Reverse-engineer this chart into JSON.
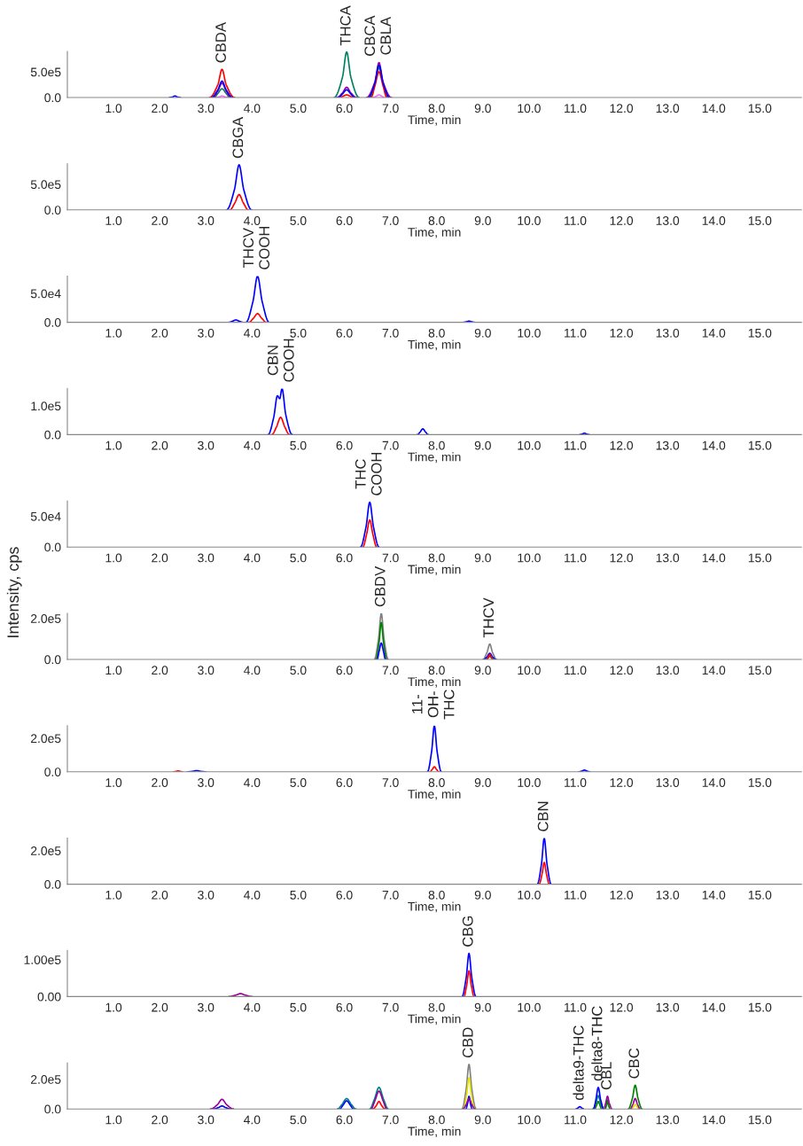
{
  "chart_data": [
    {
      "type": "line",
      "xlabel": "Time, min",
      "xlim": [
        0,
        15.9
      ],
      "xticks": [
        {
          "value": 1,
          "label": "1.0"
        },
        {
          "value": 2,
          "label": "2.0"
        },
        {
          "value": 3,
          "label": "3.0"
        },
        {
          "value": 4,
          "label": "4.0"
        },
        {
          "value": 5,
          "label": "5.0"
        },
        {
          "value": 6,
          "label": "6.0"
        },
        {
          "value": 7,
          "label": "7.0"
        },
        {
          "value": 8,
          "label": "8.0"
        },
        {
          "value": 9,
          "label": "9.0"
        },
        {
          "value": 10,
          "label": "10.0"
        },
        {
          "value": 11,
          "label": "11.0"
        },
        {
          "value": 12,
          "label": "12.0"
        },
        {
          "value": 13,
          "label": "13.0"
        },
        {
          "value": 14,
          "label": "14.0"
        },
        {
          "value": 15,
          "label": "15.0"
        }
      ],
      "ylim": [
        0,
        900000
      ],
      "yticks": [
        {
          "value": 0,
          "label": "0.0"
        },
        {
          "value": 500000,
          "label": "5.0e5"
        }
      ],
      "grid": false,
      "legend": false,
      "marker": "none",
      "line_style": "solid",
      "series": [
        {
          "color": "#008060",
          "x": [
            3.18,
            3.26,
            3.35,
            3.44,
            3.52,
            4.9,
            5.78,
            5.96,
            6.05,
            6.14,
            6.32,
            6.4,
            6.55,
            6.66,
            6.75,
            6.84,
            6.95
          ],
          "values": [
            0,
            80000,
            170000,
            80000,
            0,
            null,
            0,
            400000,
            890000,
            400000,
            0,
            null,
            0,
            260000,
            580000,
            260000,
            0
          ]
        },
        {
          "color": "#990099",
          "x": [
            3.15,
            3.26,
            3.35,
            3.44,
            3.55,
            4.9,
            5.83,
            5.96,
            6.05,
            6.14,
            6.27,
            6.4,
            6.48,
            6.66,
            6.75,
            6.84,
            7.02
          ],
          "values": [
            0,
            130000,
            280000,
            130000,
            0,
            null,
            0,
            90000,
            200000,
            90000,
            0,
            null,
            0,
            300000,
            680000,
            300000,
            0
          ]
        },
        {
          "color": "#ff0000",
          "x": [
            3.08,
            3.26,
            3.35,
            3.44,
            3.62,
            4.9,
            5.92,
            5.96,
            6.05,
            6.14,
            6.18,
            6.4,
            6.58,
            6.66,
            6.75,
            6.84,
            6.92
          ],
          "values": [
            0,
            250000,
            550000,
            250000,
            0,
            null,
            0,
            20000,
            50000,
            20000,
            0,
            null,
            0,
            220000,
            500000,
            220000,
            0
          ]
        },
        {
          "color": "#0000ff",
          "x": [
            2.21,
            2.28,
            2.33,
            2.38,
            2.45,
            2.8,
            3.12,
            3.26,
            3.35,
            3.44,
            3.58,
            4.9,
            5.87,
            5.96,
            6.05,
            6.14,
            6.23,
            6.4,
            6.52,
            6.66,
            6.75,
            6.84,
            6.98
          ],
          "values": [
            0,
            10000,
            30000,
            10000,
            0,
            null,
            0,
            150000,
            320000,
            150000,
            0,
            null,
            0,
            70000,
            150000,
            70000,
            0,
            null,
            0,
            280000,
            630000,
            280000,
            0
          ]
        },
        {
          "color": "#ff66ff",
          "x": [
            3.23,
            3.28,
            3.35,
            3.42,
            3.47,
            5.0,
            6.63,
            6.68,
            6.75,
            6.82,
            6.87
          ],
          "values": [
            0,
            10000,
            30000,
            10000,
            0,
            null,
            0,
            20000,
            50000,
            20000,
            0
          ]
        }
      ],
      "annotations": [
        {
          "text": "CBDA",
          "x": 3.35,
          "y": 550000
        },
        {
          "text": "THCA",
          "x": 6.05,
          "y": 890000
        },
        {
          "text": "CBCA\nCBLA",
          "x": 6.75,
          "y": 680000
        }
      ]
    },
    {
      "type": "line",
      "xlabel": "Time, min",
      "xlim": [
        0,
        15.9
      ],
      "xticks": [
        {
          "value": 1,
          "label": "1.0"
        },
        {
          "value": 2,
          "label": "2.0"
        },
        {
          "value": 3,
          "label": "3.0"
        },
        {
          "value": 4,
          "label": "4.0"
        },
        {
          "value": 5,
          "label": "5.0"
        },
        {
          "value": 6,
          "label": "6.0"
        },
        {
          "value": 7,
          "label": "7.0"
        },
        {
          "value": 8,
          "label": "8.0"
        },
        {
          "value": 9,
          "label": "9.0"
        },
        {
          "value": 10,
          "label": "10.0"
        },
        {
          "value": 11,
          "label": "11.0"
        },
        {
          "value": 12,
          "label": "12.0"
        },
        {
          "value": 13,
          "label": "13.0"
        },
        {
          "value": 14,
          "label": "14.0"
        },
        {
          "value": 15,
          "label": "15.0"
        }
      ],
      "ylim": [
        0,
        900000
      ],
      "yticks": [
        {
          "value": 0,
          "label": "0.0"
        },
        {
          "value": 500000,
          "label": "5.0e5"
        }
      ],
      "grid": false,
      "legend": false,
      "marker": "none",
      "line_style": "solid",
      "series": [
        {
          "color": "#0000ff",
          "x": [
            3.45,
            3.62,
            3.72,
            3.82,
            3.99
          ],
          "values": [
            0,
            400000,
            880000,
            400000,
            0
          ]
        },
        {
          "color": "#ff0000",
          "x": [
            3.52,
            3.63,
            3.72,
            3.81,
            3.92
          ],
          "values": [
            0,
            140000,
            300000,
            140000,
            0
          ]
        }
      ],
      "annotations": [
        {
          "text": "CBGA",
          "x": 3.72,
          "y": 880000
        }
      ]
    },
    {
      "type": "line",
      "xlabel": "Time, min",
      "xlim": [
        0,
        15.9
      ],
      "xticks": [
        {
          "value": 1,
          "label": "1.0"
        },
        {
          "value": 2,
          "label": "2.0"
        },
        {
          "value": 3,
          "label": "3.0"
        },
        {
          "value": 4,
          "label": "4.0"
        },
        {
          "value": 5,
          "label": "5.0"
        },
        {
          "value": 6,
          "label": "6.0"
        },
        {
          "value": 7,
          "label": "7.0"
        },
        {
          "value": 8,
          "label": "8.0"
        },
        {
          "value": 9,
          "label": "9.0"
        },
        {
          "value": 10,
          "label": "10.0"
        },
        {
          "value": 11,
          "label": "11.0"
        },
        {
          "value": 12,
          "label": "12.0"
        },
        {
          "value": 13,
          "label": "13.0"
        },
        {
          "value": 14,
          "label": "14.0"
        },
        {
          "value": 15,
          "label": "15.0"
        }
      ],
      "ylim": [
        0,
        80000
      ],
      "yticks": [
        {
          "value": 0,
          "label": "0.0"
        },
        {
          "value": 50000,
          "label": "5.0e4"
        }
      ],
      "grid": false,
      "legend": false,
      "marker": "none",
      "line_style": "solid",
      "series": [
        {
          "color": "#0000ff",
          "x": [
            3.5,
            3.58,
            3.65,
            3.72,
            3.8,
            3.85,
            3.87,
            4.02,
            4.12,
            4.22,
            4.37,
            6.0,
            8.58,
            8.65,
            8.7,
            8.75,
            8.82
          ],
          "values": [
            0,
            2000,
            4000,
            2000,
            0,
            null,
            0,
            36000,
            80000,
            36000,
            0,
            null,
            0,
            1000,
            2000,
            1000,
            0
          ]
        },
        {
          "color": "#ff0000",
          "x": [
            3.93,
            4.03,
            4.12,
            4.21,
            4.31
          ],
          "values": [
            0,
            7000,
            15000,
            7000,
            0
          ]
        }
      ],
      "annotations": [
        {
          "text": "THCV\nCOOH",
          "x": 4.12,
          "y": 80000
        }
      ]
    },
    {
      "type": "line",
      "xlabel": "Time, min",
      "xlim": [
        0,
        15.9
      ],
      "xticks": [
        {
          "value": 1,
          "label": "1.0"
        },
        {
          "value": 2,
          "label": "2.0"
        },
        {
          "value": 3,
          "label": "3.0"
        },
        {
          "value": 4,
          "label": "4.0"
        },
        {
          "value": 5,
          "label": "5.0"
        },
        {
          "value": 6,
          "label": "6.0"
        },
        {
          "value": 7,
          "label": "7.0"
        },
        {
          "value": 8,
          "label": "8.0"
        },
        {
          "value": 9,
          "label": "9.0"
        },
        {
          "value": 10,
          "label": "10.0"
        },
        {
          "value": 11,
          "label": "11.0"
        },
        {
          "value": 12,
          "label": "12.0"
        },
        {
          "value": 13,
          "label": "13.0"
        },
        {
          "value": 14,
          "label": "14.0"
        },
        {
          "value": 15,
          "label": "15.0"
        }
      ],
      "ylim": [
        0,
        160000
      ],
      "yticks": [
        {
          "value": 0,
          "label": "0.0"
        },
        {
          "value": 100000,
          "label": "1.0e5"
        }
      ],
      "grid": false,
      "legend": false,
      "marker": "none",
      "line_style": "solid",
      "series": [
        {
          "color": "#0000ff",
          "x": [
            4.35,
            4.47,
            4.55,
            4.6,
            4.65,
            4.73,
            4.87,
            6.0,
            7.58,
            7.64,
            7.7,
            7.76,
            7.82,
            9.0,
            11.1,
            11.15,
            11.2,
            11.25,
            11.3
          ],
          "values": [
            0,
            60000,
            135000,
            125000,
            160000,
            70000,
            0,
            null,
            0,
            9000,
            20000,
            9000,
            0,
            null,
            0,
            2000,
            5000,
            2000,
            0
          ]
        },
        {
          "color": "#ff0000",
          "x": [
            4.43,
            4.53,
            4.62,
            4.71,
            4.81
          ],
          "values": [
            0,
            27000,
            60000,
            27000,
            0
          ]
        }
      ],
      "annotations": [
        {
          "text": "CBN\nCOOH",
          "x": 4.65,
          "y": 160000
        }
      ]
    },
    {
      "type": "line",
      "xlabel": "Time, min",
      "xlim": [
        0,
        15.9
      ],
      "xticks": [
        {
          "value": 1,
          "label": "1.0"
        },
        {
          "value": 2,
          "label": "2.0"
        },
        {
          "value": 3,
          "label": "3.0"
        },
        {
          "value": 4,
          "label": "4.0"
        },
        {
          "value": 5,
          "label": "5.0"
        },
        {
          "value": 6,
          "label": "6.0"
        },
        {
          "value": 7,
          "label": "7.0"
        },
        {
          "value": 8,
          "label": "8.0"
        },
        {
          "value": 9,
          "label": "9.0"
        },
        {
          "value": 10,
          "label": "10.0"
        },
        {
          "value": 11,
          "label": "11.0"
        },
        {
          "value": 12,
          "label": "12.0"
        },
        {
          "value": 13,
          "label": "13.0"
        },
        {
          "value": 14,
          "label": "14.0"
        },
        {
          "value": 15,
          "label": "15.0"
        }
      ],
      "ylim": [
        0,
        75000
      ],
      "yticks": [
        {
          "value": 0,
          "label": "0.0"
        },
        {
          "value": 50000,
          "label": "5.0e4"
        }
      ],
      "grid": false,
      "legend": false,
      "marker": "none",
      "line_style": "solid",
      "series": [
        {
          "color": "#0000ff",
          "x": [
            6.35,
            6.47,
            6.55,
            6.63,
            6.75
          ],
          "values": [
            0,
            33000,
            73000,
            33000,
            0
          ]
        },
        {
          "color": "#ff0000",
          "x": [
            6.4,
            6.48,
            6.55,
            6.62,
            6.7
          ],
          "values": [
            0,
            20000,
            44000,
            20000,
            0
          ]
        }
      ],
      "annotations": [
        {
          "text": "THC\nCOOH",
          "x": 6.55,
          "y": 73000
        }
      ]
    },
    {
      "type": "line",
      "xlabel": "Time, min",
      "ylabel": "Intensity, cps",
      "xlim": [
        0,
        15.9
      ],
      "xticks": [
        {
          "value": 1,
          "label": "1.0"
        },
        {
          "value": 2,
          "label": "2.0"
        },
        {
          "value": 3,
          "label": "3.0"
        },
        {
          "value": 4,
          "label": "4.0"
        },
        {
          "value": 5,
          "label": "5.0"
        },
        {
          "value": 6,
          "label": "6.0"
        },
        {
          "value": 7,
          "label": "7.0"
        },
        {
          "value": 8,
          "label": "8.0"
        },
        {
          "value": 9,
          "label": "9.0"
        },
        {
          "value": 10,
          "label": "10.0"
        },
        {
          "value": 11,
          "label": "11.0"
        },
        {
          "value": 12,
          "label": "12.0"
        },
        {
          "value": 13,
          "label": "13.0"
        },
        {
          "value": 14,
          "label": "14.0"
        },
        {
          "value": 15,
          "label": "15.0"
        }
      ],
      "ylim": [
        0,
        225000
      ],
      "yticks": [
        {
          "value": 0,
          "label": "0.0"
        },
        {
          "value": 200000,
          "label": "2.0e5"
        }
      ],
      "grid": false,
      "legend": false,
      "marker": "none",
      "line_style": "solid",
      "series": [
        {
          "color": "#808080",
          "x": [
            6.65,
            6.74,
            6.8,
            6.86,
            6.95,
            8.0,
            9.0,
            9.09,
            9.15,
            9.21,
            9.3
          ],
          "values": [
            0,
            100000,
            225000,
            100000,
            0,
            null,
            0,
            34000,
            75000,
            34000,
            0
          ]
        },
        {
          "color": "#008000",
          "x": [
            6.68,
            6.75,
            6.8,
            6.85,
            6.92,
            8.0,
            9.07,
            9.11,
            9.15,
            9.19,
            9.23
          ],
          "values": [
            0,
            80000,
            180000,
            80000,
            0,
            null,
            0,
            7000,
            15000,
            7000,
            0
          ]
        },
        {
          "color": "#0000ff",
          "x": [
            6.71,
            6.75,
            6.8,
            6.85,
            6.89,
            8.0,
            9.02,
            9.09,
            9.15,
            9.21,
            9.28
          ],
          "values": [
            0,
            36000,
            80000,
            36000,
            0,
            null,
            0,
            13000,
            30000,
            13000,
            0
          ]
        },
        {
          "color": "#ff0000",
          "x": [
            9.08,
            9.12,
            9.15,
            9.18,
            9.22
          ],
          "values": [
            0,
            12000,
            25000,
            12000,
            0
          ]
        }
      ],
      "annotations": [
        {
          "text": "CBDV",
          "x": 6.8,
          "y": 225000
        },
        {
          "text": "THCV",
          "x": 9.15,
          "y": 75000
        }
      ]
    },
    {
      "type": "line",
      "xlabel": "Time, min",
      "xlim": [
        0,
        15.9
      ],
      "xticks": [
        {
          "value": 1,
          "label": "1.0"
        },
        {
          "value": 2,
          "label": "2.0"
        },
        {
          "value": 3,
          "label": "3.0"
        },
        {
          "value": 4,
          "label": "4.0"
        },
        {
          "value": 5,
          "label": "5.0"
        },
        {
          "value": 6,
          "label": "6.0"
        },
        {
          "value": 7,
          "label": "7.0"
        },
        {
          "value": 8,
          "label": "8.0"
        },
        {
          "value": 9,
          "label": "9.0"
        },
        {
          "value": 10,
          "label": "10.0"
        },
        {
          "value": 11,
          "label": "11.0"
        },
        {
          "value": 12,
          "label": "12.0"
        },
        {
          "value": 13,
          "label": "13.0"
        },
        {
          "value": 14,
          "label": "14.0"
        },
        {
          "value": 15,
          "label": "15.0"
        }
      ],
      "ylim": [
        0,
        275000
      ],
      "yticks": [
        {
          "value": 0,
          "label": "0.0"
        },
        {
          "value": 200000,
          "label": "2.0e5"
        }
      ],
      "grid": false,
      "legend": false,
      "marker": "none",
      "line_style": "solid",
      "series": [
        {
          "color": "#0000ff",
          "x": [
            2.6,
            2.72,
            2.8,
            2.88,
            3.0,
            5.0,
            7.8,
            7.89,
            7.95,
            8.01,
            8.1,
            9.5,
            11.08,
            11.14,
            11.2,
            11.26,
            11.32
          ],
          "values": [
            0,
            3000,
            7000,
            3000,
            0,
            null,
            0,
            120000,
            275000,
            120000,
            0,
            null,
            0,
            4000,
            10000,
            4000,
            0
          ]
        },
        {
          "color": "#ff0000",
          "x": [
            2.3,
            2.35,
            2.4,
            2.45,
            2.5,
            5.0,
            7.85,
            7.9,
            7.95,
            8.0,
            8.05
          ],
          "values": [
            0,
            2000,
            5000,
            2000,
            0,
            null,
            0,
            13000,
            30000,
            13000,
            0
          ]
        }
      ],
      "annotations": [
        {
          "text": "11-\nOH-\nTHC",
          "x": 7.95,
          "y": 275000
        }
      ]
    },
    {
      "type": "line",
      "xlabel": "Time, min",
      "xlim": [
        0,
        15.9
      ],
      "xticks": [
        {
          "value": 1,
          "label": "1.0"
        },
        {
          "value": 2,
          "label": "2.0"
        },
        {
          "value": 3,
          "label": "3.0"
        },
        {
          "value": 4,
          "label": "4.0"
        },
        {
          "value": 5,
          "label": "5.0"
        },
        {
          "value": 6,
          "label": "6.0"
        },
        {
          "value": 7,
          "label": "7.0"
        },
        {
          "value": 8,
          "label": "8.0"
        },
        {
          "value": 9,
          "label": "9.0"
        },
        {
          "value": 10,
          "label": "10.0"
        },
        {
          "value": 11,
          "label": "11.0"
        },
        {
          "value": 12,
          "label": "12.0"
        },
        {
          "value": 13,
          "label": "13.0"
        },
        {
          "value": 14,
          "label": "14.0"
        },
        {
          "value": 15,
          "label": "15.0"
        }
      ],
      "ylim": [
        0,
        275000
      ],
      "yticks": [
        {
          "value": 0,
          "label": "0.0"
        },
        {
          "value": 200000,
          "label": "2.0e5"
        }
      ],
      "grid": false,
      "legend": false,
      "marker": "none",
      "line_style": "solid",
      "series": [
        {
          "color": "#0000ff",
          "x": [
            10.18,
            10.27,
            10.33,
            10.39,
            10.48
          ],
          "values": [
            0,
            120000,
            275000,
            120000,
            0
          ]
        },
        {
          "color": "#ff0000",
          "x": [
            10.22,
            10.28,
            10.33,
            10.38,
            10.44
          ],
          "values": [
            0,
            58000,
            130000,
            58000,
            0
          ]
        }
      ],
      "annotations": [
        {
          "text": "CBN",
          "x": 10.33,
          "y": 275000
        }
      ]
    },
    {
      "type": "line",
      "xlabel": "Time, min",
      "xlim": [
        0,
        15.9
      ],
      "xticks": [
        {
          "value": 1,
          "label": "1.0"
        },
        {
          "value": 2,
          "label": "2.0"
        },
        {
          "value": 3,
          "label": "3.0"
        },
        {
          "value": 4,
          "label": "4.0"
        },
        {
          "value": 5,
          "label": "5.0"
        },
        {
          "value": 6,
          "label": "6.0"
        },
        {
          "value": 7,
          "label": "7.0"
        },
        {
          "value": 8,
          "label": "8.0"
        },
        {
          "value": 9,
          "label": "9.0"
        },
        {
          "value": 10,
          "label": "10.0"
        },
        {
          "value": 11,
          "label": "11.0"
        },
        {
          "value": 12,
          "label": "12.0"
        },
        {
          "value": 13,
          "label": "13.0"
        },
        {
          "value": 14,
          "label": "14.0"
        },
        {
          "value": 15,
          "label": "15.0"
        }
      ],
      "ylim": [
        0,
        125000
      ],
      "yticks": [
        {
          "value": 0,
          "label": "0.00"
        },
        {
          "value": 100000,
          "label": "1.00e5"
        }
      ],
      "grid": false,
      "legend": false,
      "marker": "none",
      "line_style": "solid",
      "series": [
        {
          "color": "#990099",
          "x": [
            3.5,
            3.65,
            3.75,
            3.85,
            4.0
          ],
          "values": [
            0,
            4000,
            8000,
            4000,
            0
          ]
        },
        {
          "color": "#0000ff",
          "x": [
            8.55,
            8.64,
            8.7,
            8.76,
            8.85
          ],
          "values": [
            0,
            52000,
            117000,
            52000,
            0
          ]
        },
        {
          "color": "#ff0000",
          "x": [
            8.59,
            8.65,
            8.7,
            8.75,
            8.81
          ],
          "values": [
            0,
            31000,
            70000,
            31000,
            0
          ]
        }
      ],
      "annotations": [
        {
          "text": "CBG",
          "x": 8.7,
          "y": 117000
        }
      ]
    },
    {
      "type": "line",
      "xlabel": "Time, min",
      "xlim": [
        0,
        15.9
      ],
      "xticks": [
        {
          "value": 1,
          "label": "1.0"
        },
        {
          "value": 2,
          "label": "2.0"
        },
        {
          "value": 3,
          "label": "3.0"
        },
        {
          "value": 4,
          "label": "4.0"
        },
        {
          "value": 5,
          "label": "5.0"
        },
        {
          "value": 6,
          "label": "6.0"
        },
        {
          "value": 7,
          "label": "7.0"
        },
        {
          "value": 8,
          "label": "8.0"
        },
        {
          "value": 9,
          "label": "9.0"
        },
        {
          "value": 10,
          "label": "10.0"
        },
        {
          "value": 11,
          "label": "11.0"
        },
        {
          "value": 12,
          "label": "12.0"
        },
        {
          "value": 13,
          "label": "13.0"
        },
        {
          "value": 14,
          "label": "14.0"
        },
        {
          "value": 15,
          "label": "15.0"
        }
      ],
      "ylim": [
        0,
        310000
      ],
      "yticks": [
        {
          "value": 0,
          "label": "0.0"
        },
        {
          "value": 200000,
          "label": "2.0e5"
        }
      ],
      "grid": false,
      "legend": false,
      "marker": "none",
      "line_style": "solid",
      "series": [
        {
          "color": "#808080",
          "x": [
            8.55,
            8.64,
            8.7,
            8.76,
            8.85
          ],
          "values": [
            0,
            135000,
            300000,
            135000,
            0
          ]
        },
        {
          "color": "#e6e600",
          "x": [
            8.58,
            8.65,
            8.7,
            8.75,
            8.82,
            10.0,
            12.22,
            12.26,
            12.3,
            12.34,
            12.38
          ],
          "values": [
            0,
            95000,
            210000,
            95000,
            0,
            null,
            0,
            13000,
            30000,
            13000,
            0
          ]
        },
        {
          "color": "#008080",
          "x": [
            5.85,
            5.95,
            6.05,
            6.15,
            6.25,
            6.4,
            6.55,
            6.65,
            6.75,
            6.85,
            6.95,
            9.0,
            11.38,
            11.45,
            11.5,
            11.55,
            11.6
          ],
          "values": [
            0,
            31000,
            70000,
            31000,
            0,
            null,
            0,
            65000,
            145000,
            65000,
            0,
            null,
            0,
            40000,
            90000,
            40000,
            0
          ]
        },
        {
          "color": "#008000",
          "x": [
            11.42,
            11.46,
            11.5,
            11.54,
            11.57,
            11.6,
            11.65,
            11.68,
            11.7,
            11.72,
            11.76,
            12.0,
            12.15,
            12.24,
            12.3,
            12.36,
            12.45
          ],
          "values": [
            0,
            22000,
            50000,
            22000,
            0,
            null,
            0,
            27000,
            60000,
            27000,
            0,
            null,
            0,
            72000,
            160000,
            72000,
            0
          ]
        },
        {
          "color": "#0000ff",
          "x": [
            3.17,
            3.27,
            3.35,
            3.43,
            3.53,
            5.0,
            5.9,
            5.97,
            6.05,
            6.13,
            6.2,
            8.0,
            8.63,
            8.67,
            8.7,
            8.73,
            8.77,
            10.0,
            11.02,
            11.06,
            11.1,
            11.14,
            11.18,
            11.3,
            11.4,
            11.45,
            11.5,
            11.55,
            11.62
          ],
          "values": [
            0,
            9000,
            20000,
            9000,
            0,
            null,
            0,
            25000,
            55000,
            25000,
            0,
            null,
            0,
            38000,
            85000,
            38000,
            0,
            null,
            0,
            7000,
            15000,
            7000,
            0,
            null,
            0,
            65000,
            145000,
            65000,
            0
          ]
        },
        {
          "color": "#990099",
          "x": [
            3.1,
            3.25,
            3.35,
            3.45,
            3.6,
            5.0,
            6.58,
            6.66,
            6.75,
            6.84,
            6.92,
            8.0,
            8.57,
            8.64,
            8.7,
            8.76,
            8.83,
            10.0,
            11.62,
            11.66,
            11.7,
            11.74,
            11.8,
            12.0,
            12.19,
            12.25,
            12.3,
            12.35,
            12.41
          ],
          "values": [
            0,
            29000,
            65000,
            29000,
            0,
            null,
            0,
            54000,
            120000,
            54000,
            0,
            null,
            0,
            31000,
            70000,
            31000,
            0,
            null,
            0,
            38000,
            85000,
            38000,
            0,
            null,
            0,
            31000,
            70000,
            31000,
            0
          ]
        },
        {
          "color": "#ff0000",
          "x": [
            6.62,
            6.69,
            6.75,
            6.81,
            6.88
          ],
          "values": [
            0,
            22000,
            50000,
            22000,
            0
          ]
        }
      ],
      "annotations": [
        {
          "text": "CBD",
          "x": 8.7,
          "y": 300000
        },
        {
          "text": "delta9-THC",
          "x": 11.1,
          "y": 15000
        },
        {
          "text": "delta8-THC",
          "x": 11.5,
          "y": 145000
        },
        {
          "text": "CBL",
          "x": 11.7,
          "y": 85000
        },
        {
          "text": "CBC",
          "x": 12.3,
          "y": 160000
        }
      ]
    }
  ]
}
